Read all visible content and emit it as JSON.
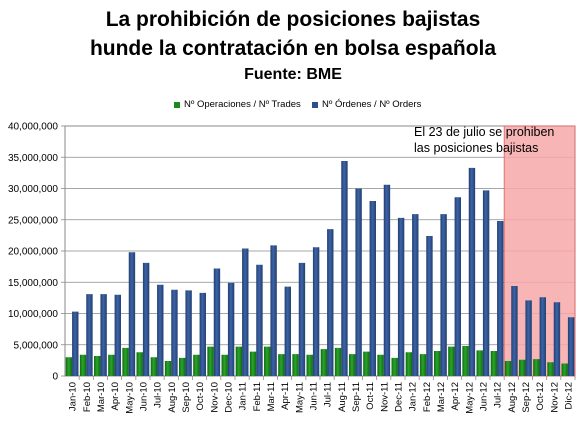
{
  "title": {
    "line1": "La prohibición de posiciones bajistas",
    "line2": "hunde la contratación en bolsa española",
    "line3": "Fuente: BME"
  },
  "colors": {
    "operaciones": "#1a8a1a",
    "ordenes": "#2d4f8e",
    "ban_zone": "#f7a8a8",
    "ban_zone_border": "#e06060"
  },
  "chart_data": {
    "type": "bar",
    "title": "La prohibición de posiciones bajistas hunde la contratación en bolsa española",
    "subtitle": "Fuente: BME",
    "legend_position": "top",
    "grid": true,
    "ylim": [
      0,
      40000000
    ],
    "yticks": [
      "0",
      "5,000,000",
      "10,000,000",
      "15,000,000",
      "20,000,000",
      "25,000,000",
      "30,000,000",
      "35,000,000",
      "40,000,000"
    ],
    "categories": [
      "Jan-10",
      "Feb-10",
      "Mar-10",
      "Apr-10",
      "May-10",
      "Jun-10",
      "Jul-10",
      "Aug-10",
      "Sep-10",
      "Oct-10",
      "Nov-10",
      "Dec-10",
      "Jan-11",
      "Feb-11",
      "Mar-11",
      "Apr-11",
      "May-11",
      "Jun-11",
      "Jul-11",
      "Aug-11",
      "Sep-11",
      "Oct-11",
      "Nov-11",
      "Dec-11",
      "Jan-12",
      "Feb-12",
      "Mar-12",
      "Apr-12",
      "May-12",
      "Jun-12",
      "Jul-12",
      "Aug-12",
      "Sep-12",
      "Oct-12",
      "Nov-12",
      "Dic-12"
    ],
    "series": [
      {
        "name": "Nº Operaciones / Nº Trades",
        "values": [
          3000000,
          3400000,
          3200000,
          3400000,
          4500000,
          3800000,
          3000000,
          2400000,
          2900000,
          3400000,
          4700000,
          3400000,
          4700000,
          3900000,
          4700000,
          3500000,
          3500000,
          3400000,
          4300000,
          4500000,
          3500000,
          3900000,
          3400000,
          2900000,
          3800000,
          3500000,
          4000000,
          4700000,
          4800000,
          4100000,
          4000000,
          2400000,
          2600000,
          2700000,
          2200000,
          2000000
        ]
      },
      {
        "name": "Nº Órdenes / Nº Orders",
        "values": [
          10300000,
          13100000,
          13100000,
          13000000,
          19800000,
          18100000,
          14600000,
          13800000,
          13700000,
          13300000,
          17200000,
          14900000,
          20400000,
          17800000,
          20900000,
          14300000,
          18100000,
          20600000,
          23500000,
          34400000,
          30000000,
          28000000,
          30600000,
          25300000,
          25900000,
          22400000,
          25900000,
          28600000,
          33300000,
          29700000,
          24800000,
          14400000,
          12100000,
          12600000,
          11800000,
          9400000
        ]
      }
    ],
    "annotations": [
      {
        "text_line1": "El 23 de julio se prohiben",
        "text_line2": "las posiciones bajistas",
        "from": "Aug-12",
        "to": "Dic-12"
      }
    ]
  }
}
